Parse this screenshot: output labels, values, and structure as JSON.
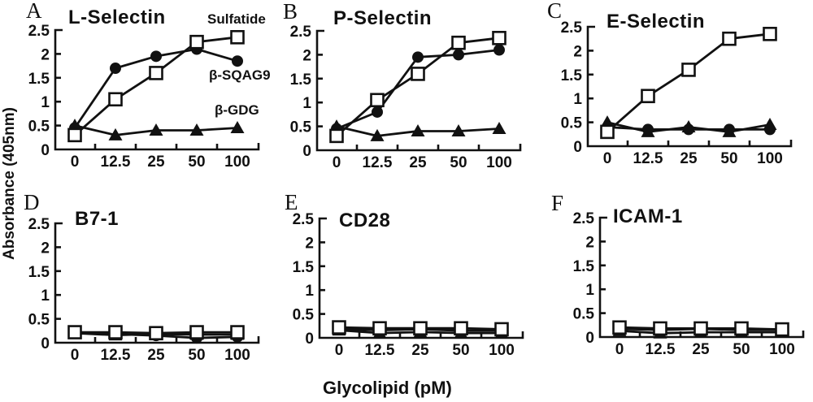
{
  "figure": {
    "ylabel": "Absorbance (405nm)",
    "xlabel": "Glycolipid (pM)",
    "y_ticks": [
      "0",
      "0.5",
      "1",
      "1.5",
      "2",
      "2.5"
    ],
    "x_ticks": [
      "0",
      "12.5",
      "25",
      "50",
      "100"
    ]
  },
  "legend": [
    {
      "name": "Sulfatide",
      "marker": "open-square"
    },
    {
      "name": "β-SQAG9",
      "marker": "filled-circle"
    },
    {
      "name": "β-GDG",
      "marker": "filled-triangle"
    }
  ],
  "chart_data": [
    {
      "panel": "A",
      "type": "line",
      "title": "L-Selectin",
      "x": [
        0,
        12.5,
        25,
        50,
        100
      ],
      "xlabel": "Glycolipid (pM)",
      "ylabel": "Absorbance (405nm)",
      "ylim": [
        0,
        2.5
      ],
      "grid": false,
      "legend_position": "right-inside-panel-A",
      "series": [
        {
          "name": "Sulfatide",
          "marker": "open-square",
          "values": [
            0.3,
            1.05,
            1.6,
            2.25,
            2.35
          ]
        },
        {
          "name": "β-SQAG9",
          "marker": "filled-circle",
          "values": [
            0.45,
            1.7,
            1.95,
            2.1,
            1.85
          ]
        },
        {
          "name": "β-GDG",
          "marker": "filled-triangle",
          "values": [
            0.5,
            0.3,
            0.4,
            0.4,
            0.45
          ]
        }
      ]
    },
    {
      "panel": "B",
      "type": "line",
      "title": "P-Selectin",
      "x": [
        0,
        12.5,
        25,
        50,
        100
      ],
      "xlabel": "Glycolipid (pM)",
      "ylabel": "Absorbance (405nm)",
      "ylim": [
        0,
        2.5
      ],
      "grid": false,
      "series": [
        {
          "name": "Sulfatide",
          "marker": "open-square",
          "values": [
            0.3,
            1.05,
            1.6,
            2.25,
            2.35
          ]
        },
        {
          "name": "β-SQAG9",
          "marker": "filled-circle",
          "values": [
            0.45,
            0.8,
            1.95,
            2.0,
            2.1
          ]
        },
        {
          "name": "β-GDG",
          "marker": "filled-triangle",
          "values": [
            0.5,
            0.3,
            0.4,
            0.4,
            0.45
          ]
        }
      ]
    },
    {
      "panel": "C",
      "type": "line",
      "title": "E-Selectin",
      "x": [
        0,
        12.5,
        25,
        50,
        100
      ],
      "xlabel": "Glycolipid (pM)",
      "ylabel": "Absorbance (405nm)",
      "ylim": [
        0,
        2.5
      ],
      "grid": false,
      "series": [
        {
          "name": "Sulfatide",
          "marker": "open-square",
          "values": [
            0.3,
            1.05,
            1.6,
            2.25,
            2.35
          ]
        },
        {
          "name": "β-SQAG9",
          "marker": "filled-circle",
          "values": [
            0.4,
            0.35,
            0.35,
            0.35,
            0.35
          ]
        },
        {
          "name": "β-GDG",
          "marker": "filled-triangle",
          "values": [
            0.5,
            0.3,
            0.4,
            0.3,
            0.45
          ]
        }
      ]
    },
    {
      "panel": "D",
      "type": "line",
      "title": "B7-1",
      "x": [
        0,
        12.5,
        25,
        50,
        100
      ],
      "xlabel": "Glycolipid (pM)",
      "ylabel": "Absorbance (405nm)",
      "ylim": [
        0,
        2.5
      ],
      "grid": false,
      "series": [
        {
          "name": "Sulfatide",
          "marker": "open-square",
          "values": [
            0.22,
            0.22,
            0.2,
            0.22,
            0.22
          ]
        },
        {
          "name": "β-SQAG9",
          "marker": "filled-circle",
          "values": [
            0.2,
            0.18,
            0.15,
            0.1,
            0.12
          ]
        },
        {
          "name": "β-GDG",
          "marker": "filled-triangle",
          "values": [
            0.2,
            0.16,
            0.18,
            0.17,
            0.17
          ]
        }
      ]
    },
    {
      "panel": "E",
      "type": "line",
      "title": "CD28",
      "x": [
        0,
        12.5,
        25,
        50,
        100
      ],
      "xlabel": "Glycolipid (pM)",
      "ylabel": "Absorbance (405nm)",
      "ylim": [
        0,
        2.5
      ],
      "grid": false,
      "series": [
        {
          "name": "Sulfatide",
          "marker": "open-square",
          "values": [
            0.22,
            0.2,
            0.2,
            0.2,
            0.18
          ]
        },
        {
          "name": "β-SQAG9",
          "marker": "filled-circle",
          "values": [
            0.18,
            0.16,
            0.18,
            0.15,
            0.15
          ]
        },
        {
          "name": "β-GDG",
          "marker": "filled-triangle",
          "values": [
            0.16,
            0.1,
            0.12,
            0.1,
            0.1
          ]
        }
      ]
    },
    {
      "panel": "F",
      "type": "line",
      "title": "ICAM-1",
      "x": [
        0,
        12.5,
        25,
        50,
        100
      ],
      "xlabel": "Glycolipid (pM)",
      "ylabel": "Absorbance (405nm)",
      "ylim": [
        0,
        2.5
      ],
      "grid": false,
      "series": [
        {
          "name": "Sulfatide",
          "marker": "open-square",
          "values": [
            0.2,
            0.18,
            0.18,
            0.18,
            0.16
          ]
        },
        {
          "name": "β-SQAG9",
          "marker": "filled-circle",
          "values": [
            0.17,
            0.15,
            0.17,
            0.15,
            0.15
          ]
        },
        {
          "name": "β-GDG",
          "marker": "filled-triangle",
          "values": [
            0.13,
            0.08,
            0.1,
            0.1,
            0.1
          ]
        }
      ]
    }
  ]
}
